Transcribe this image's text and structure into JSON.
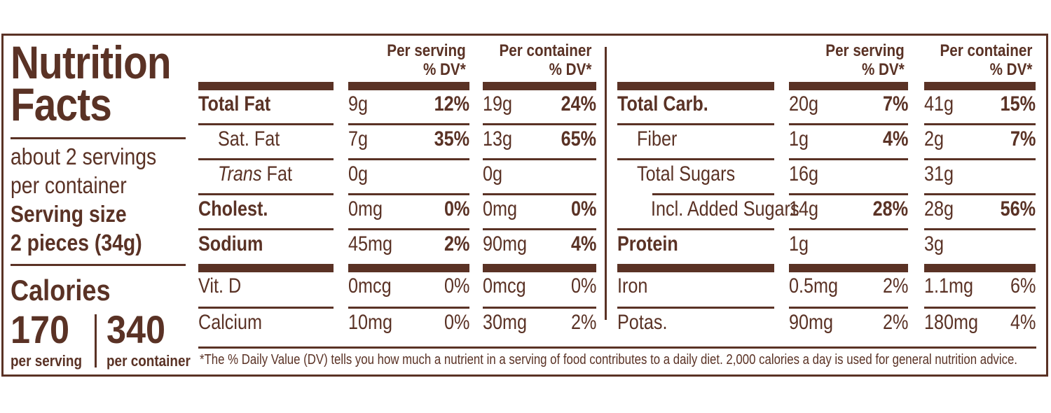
{
  "label": {
    "title_line1": "Nutrition",
    "title_line2": "Facts",
    "servings_line1": "about 2 servings",
    "servings_line2": "per container",
    "serving_size_label": "Serving size",
    "serving_size_value": "2 pieces (34g)",
    "calories_label": "Calories",
    "calories_per_serving": "170",
    "calories_per_container": "340",
    "per_serving_label": "per serving",
    "per_container_label": "per container",
    "colors": {
      "ink": "#5a3225",
      "background": "#ffffff"
    }
  },
  "headers": {
    "per_serving": "Per serving",
    "per_container": "Per container",
    "dv": "% DV*"
  },
  "left_table": [
    {
      "name": "Total Fat",
      "bold": true,
      "indent": 0,
      "serv_amt": "9g",
      "serv_dv": "12%",
      "cont_amt": "19g",
      "cont_dv": "24%"
    },
    {
      "name": "Sat. Fat",
      "bold": false,
      "indent": 1,
      "serv_amt": "7g",
      "serv_dv": "35%",
      "cont_amt": "13g",
      "cont_dv": "65%"
    },
    {
      "name_italic": "Trans",
      "name": " Fat",
      "bold": false,
      "indent": 1,
      "serv_amt": "0g",
      "serv_dv": "",
      "cont_amt": "0g",
      "cont_dv": ""
    },
    {
      "name": "Cholest.",
      "bold": true,
      "indent": 0,
      "serv_amt": "0mg",
      "serv_dv": "0%",
      "cont_amt": "0mg",
      "cont_dv": "0%"
    },
    {
      "name": "Sodium",
      "bold": true,
      "indent": 0,
      "serv_amt": "45mg",
      "serv_dv": "2%",
      "cont_amt": "90mg",
      "cont_dv": "4%"
    },
    {
      "name": "Vit. D",
      "bold": false,
      "indent": 0,
      "serv_amt": "0mcg",
      "serv_dv": "0%",
      "cont_amt": "0mcg",
      "cont_dv": "0%"
    },
    {
      "name": "Calcium",
      "bold": false,
      "indent": 0,
      "serv_amt": "10mg",
      "serv_dv": "0%",
      "cont_amt": "30mg",
      "cont_dv": "2%"
    }
  ],
  "right_table": [
    {
      "name": "Total Carb.",
      "bold": true,
      "indent": 0,
      "serv_amt": "20g",
      "serv_dv": "7%",
      "cont_amt": "41g",
      "cont_dv": "15%"
    },
    {
      "name": "Fiber",
      "bold": false,
      "indent": 1,
      "serv_amt": "1g",
      "serv_dv": "4%",
      "cont_amt": "2g",
      "cont_dv": "7%"
    },
    {
      "name": "Total Sugars",
      "bold": false,
      "indent": 1,
      "serv_amt": "16g",
      "serv_dv": "",
      "cont_amt": "31g",
      "cont_dv": ""
    },
    {
      "name": "Incl. Added Sugars",
      "bold": false,
      "indent": 2,
      "serv_amt": "14g",
      "serv_dv": "28%",
      "cont_amt": "28g",
      "cont_dv": "56%"
    },
    {
      "name": "Protein",
      "bold": true,
      "indent": 0,
      "serv_amt": "1g",
      "serv_dv": "",
      "cont_amt": "3g",
      "cont_dv": ""
    },
    {
      "name": "Iron",
      "bold": false,
      "indent": 0,
      "serv_amt": "0.5mg",
      "serv_dv": "2%",
      "cont_amt": "1.1mg",
      "cont_dv": "6%"
    },
    {
      "name": "Potas.",
      "bold": false,
      "indent": 0,
      "serv_amt": "90mg",
      "serv_dv": "2%",
      "cont_amt": "180mg",
      "cont_dv": "4%"
    }
  ],
  "footnote": "*The % Daily Value (DV) tells you how much a nutrient in a serving of food contributes to a daily diet. 2,000 calories a day is used for general nutrition advice."
}
